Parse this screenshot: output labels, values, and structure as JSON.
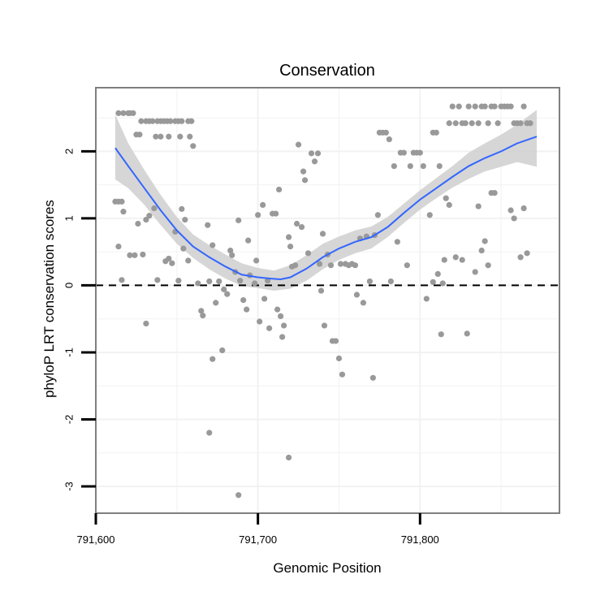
{
  "chart_data": {
    "type": "scatter",
    "title": "Conservation",
    "xlabel": "Genomic Position",
    "ylabel": "phyloP LRT conservation scores",
    "xlim": [
      791600,
      791886
    ],
    "ylim": [
      -3.4,
      2.95
    ],
    "x_ticks": [
      791600,
      791700,
      791800
    ],
    "x_tick_labels": [
      "791,600",
      "791,700",
      "791,800"
    ],
    "y_ticks": [
      -3,
      -2,
      -1,
      0,
      1,
      2
    ],
    "y_tick_labels": [
      "-3",
      "-2",
      "-1",
      "0",
      "1",
      "2"
    ],
    "grid": true,
    "reference_line": {
      "y": 0,
      "style": "dashed"
    },
    "colors": {
      "points": "#999999",
      "smooth_line": "#3366ff",
      "confidence_band": "#cccccc",
      "panel_border": "#7f7f7f",
      "grid": "#f2f2f2"
    },
    "points": [
      [
        791614,
        2.57
      ],
      [
        791617,
        2.57
      ],
      [
        791620,
        2.57
      ],
      [
        791621,
        2.57
      ],
      [
        791623,
        2.57
      ],
      [
        791625,
        2.25
      ],
      [
        791627,
        2.25
      ],
      [
        791628,
        2.45
      ],
      [
        791631,
        2.45
      ],
      [
        791633,
        2.45
      ],
      [
        791635,
        2.45
      ],
      [
        791638,
        2.45
      ],
      [
        791640,
        2.45
      ],
      [
        791642,
        2.45
      ],
      [
        791644,
        2.45
      ],
      [
        791646,
        2.45
      ],
      [
        791649,
        2.45
      ],
      [
        791651,
        2.45
      ],
      [
        791653,
        2.45
      ],
      [
        791657,
        2.45
      ],
      [
        791659,
        2.45
      ],
      [
        791637,
        2.22
      ],
      [
        791640,
        2.22
      ],
      [
        791645,
        2.22
      ],
      [
        791652,
        2.22
      ],
      [
        791658,
        2.22
      ],
      [
        791660,
        2.08
      ],
      [
        791612,
        1.25
      ],
      [
        791614,
        1.25
      ],
      [
        791616,
        1.25
      ],
      [
        791617,
        1.1
      ],
      [
        791614,
        0.58
      ],
      [
        791616,
        0.08
      ],
      [
        791621,
        0.45
      ],
      [
        791624,
        0.45
      ],
      [
        791626,
        0.92
      ],
      [
        791629,
        0.46
      ],
      [
        791631,
        0.98
      ],
      [
        791633,
        1.04
      ],
      [
        791636,
        1.15
      ],
      [
        791638,
        0.08
      ],
      [
        791643,
        0.36
      ],
      [
        791645,
        0.4
      ],
      [
        791647,
        0.33
      ],
      [
        791649,
        0.8
      ],
      [
        791651,
        0.07
      ],
      [
        791653,
        1.14
      ],
      [
        791654,
        0.55
      ],
      [
        791655,
        0.98
      ],
      [
        791657,
        0.37
      ],
      [
        791631,
        -0.57
      ],
      [
        791663,
        0.03
      ],
      [
        791665,
        -0.38
      ],
      [
        791666,
        -0.45
      ],
      [
        791669,
        0.9
      ],
      [
        791670,
        0.06
      ],
      [
        791672,
        0.6
      ],
      [
        791674,
        -0.26
      ],
      [
        791676,
        0.06
      ],
      [
        791678,
        -0.97
      ],
      [
        791679,
        -0.06
      ],
      [
        791681,
        -0.13
      ],
      [
        791683,
        0.52
      ],
      [
        791684,
        0.45
      ],
      [
        791686,
        0.2
      ],
      [
        791688,
        0.97
      ],
      [
        791689,
        0.07
      ],
      [
        791691,
        -0.22
      ],
      [
        791693,
        -0.36
      ],
      [
        791694,
        0.67
      ],
      [
        791695,
        0.15
      ],
      [
        791698,
        0.03
      ],
      [
        791699,
        0.37
      ],
      [
        791700,
        1.05
      ],
      [
        791701,
        -0.54
      ],
      [
        791703,
        1.2
      ],
      [
        791704,
        -0.2
      ],
      [
        791706,
        0.07
      ],
      [
        791707,
        -0.64
      ],
      [
        791709,
        1.07
      ],
      [
        791711,
        1.07
      ],
      [
        791712,
        -0.36
      ],
      [
        791713,
        1.43
      ],
      [
        791714,
        -0.46
      ],
      [
        791715,
        -0.77
      ],
      [
        791716,
        -0.6
      ],
      [
        791719,
        0.72
      ],
      [
        791720,
        0.58
      ],
      [
        791721,
        0.28
      ],
      [
        791723,
        0.3
      ],
      [
        791724,
        0.92
      ],
      [
        791725,
        2.1
      ],
      [
        791727,
        0.87
      ],
      [
        791728,
        1.7
      ],
      [
        791729,
        1.57
      ],
      [
        791731,
        0.48
      ],
      [
        791733,
        1.97
      ],
      [
        791735,
        1.85
      ],
      [
        791737,
        1.97
      ],
      [
        791738,
        0.32
      ],
      [
        791739,
        -0.08
      ],
      [
        791740,
        0.77
      ],
      [
        791741,
        -0.6
      ],
      [
        791743,
        0.46
      ],
      [
        791745,
        0.3
      ],
      [
        791746,
        -0.83
      ],
      [
        791748,
        -0.83
      ],
      [
        791750,
        -1.09
      ],
      [
        791751,
        0.32
      ],
      [
        791752,
        -1.33
      ],
      [
        791754,
        0.32
      ],
      [
        791756,
        0.3
      ],
      [
        791758,
        0.32
      ],
      [
        791760,
        0.3
      ],
      [
        791761,
        -0.14
      ],
      [
        791763,
        0.7
      ],
      [
        791765,
        -0.26
      ],
      [
        791767,
        0.73
      ],
      [
        791769,
        0.06
      ],
      [
        791771,
        -1.38
      ],
      [
        791772,
        0.75
      ],
      [
        791774,
        1.05
      ],
      [
        791775,
        2.28
      ],
      [
        791777,
        2.28
      ],
      [
        791779,
        2.28
      ],
      [
        791781,
        2.18
      ],
      [
        791782,
        0.06
      ],
      [
        791784,
        1.78
      ],
      [
        791786,
        0.65
      ],
      [
        791788,
        1.98
      ],
      [
        791790,
        1.98
      ],
      [
        791792,
        0.3
      ],
      [
        791794,
        1.78
      ],
      [
        791796,
        1.98
      ],
      [
        791798,
        1.98
      ],
      [
        791800,
        1.98
      ],
      [
        791802,
        1.78
      ],
      [
        791804,
        -0.2
      ],
      [
        791806,
        1.05
      ],
      [
        791808,
        2.28
      ],
      [
        791810,
        2.28
      ],
      [
        791812,
        1.78
      ],
      [
        791813,
        -0.73
      ],
      [
        791815,
        0.38
      ],
      [
        791816,
        1.3
      ],
      [
        791818,
        2.42
      ],
      [
        791820,
        2.67
      ],
      [
        791822,
        2.42
      ],
      [
        791824,
        2.67
      ],
      [
        791826,
        2.42
      ],
      [
        791828,
        2.42
      ],
      [
        791830,
        2.67
      ],
      [
        791832,
        2.42
      ],
      [
        791834,
        2.67
      ],
      [
        791836,
        2.42
      ],
      [
        791838,
        2.67
      ],
      [
        791840,
        2.67
      ],
      [
        791842,
        2.42
      ],
      [
        791844,
        2.67
      ],
      [
        791846,
        2.67
      ],
      [
        791848,
        2.42
      ],
      [
        791850,
        2.67
      ],
      [
        791852,
        2.67
      ],
      [
        791854,
        2.67
      ],
      [
        791856,
        2.67
      ],
      [
        791858,
        2.42
      ],
      [
        791860,
        2.42
      ],
      [
        791862,
        2.42
      ],
      [
        791864,
        2.67
      ],
      [
        791866,
        2.42
      ],
      [
        791868,
        2.42
      ],
      [
        791818,
        1.2
      ],
      [
        791822,
        0.42
      ],
      [
        791826,
        0.38
      ],
      [
        791829,
        -0.72
      ],
      [
        791834,
        0.2
      ],
      [
        791836,
        1.18
      ],
      [
        791838,
        0.52
      ],
      [
        791840,
        0.66
      ],
      [
        791842,
        0.3
      ],
      [
        791844,
        1.38
      ],
      [
        791846,
        1.38
      ],
      [
        791856,
        1.12
      ],
      [
        791858,
        1.0
      ],
      [
        791862,
        0.42
      ],
      [
        791864,
        1.15
      ],
      [
        791866,
        0.48
      ],
      [
        791670,
        -2.2
      ],
      [
        791672,
        -1.1
      ],
      [
        791688,
        -3.13
      ],
      [
        791719,
        -2.57
      ],
      [
        791808,
        0.05
      ],
      [
        791811,
        0.17
      ],
      [
        791814,
        0.03
      ]
    ],
    "smooth_line": [
      [
        791612,
        2.05
      ],
      [
        791620,
        1.78
      ],
      [
        791630,
        1.45
      ],
      [
        791640,
        1.12
      ],
      [
        791650,
        0.82
      ],
      [
        791660,
        0.58
      ],
      [
        791670,
        0.42
      ],
      [
        791680,
        0.28
      ],
      [
        791690,
        0.16
      ],
      [
        791700,
        0.12
      ],
      [
        791708,
        0.1
      ],
      [
        791714,
        0.09
      ],
      [
        791720,
        0.12
      ],
      [
        791730,
        0.25
      ],
      [
        791740,
        0.42
      ],
      [
        791750,
        0.55
      ],
      [
        791760,
        0.65
      ],
      [
        791770,
        0.72
      ],
      [
        791780,
        0.87
      ],
      [
        791790,
        1.08
      ],
      [
        791800,
        1.28
      ],
      [
        791810,
        1.45
      ],
      [
        791820,
        1.62
      ],
      [
        791830,
        1.78
      ],
      [
        791840,
        1.9
      ],
      [
        791850,
        2.0
      ],
      [
        791860,
        2.12
      ],
      [
        791872,
        2.22
      ]
    ],
    "band_upper": [
      [
        791612,
        2.55
      ],
      [
        791620,
        2.12
      ],
      [
        791630,
        1.72
      ],
      [
        791640,
        1.35
      ],
      [
        791650,
        1.02
      ],
      [
        791660,
        0.76
      ],
      [
        791670,
        0.6
      ],
      [
        791680,
        0.46
      ],
      [
        791690,
        0.33
      ],
      [
        791700,
        0.26
      ],
      [
        791710,
        0.22
      ],
      [
        791720,
        0.3
      ],
      [
        791730,
        0.45
      ],
      [
        791740,
        0.62
      ],
      [
        791750,
        0.73
      ],
      [
        791760,
        0.82
      ],
      [
        791770,
        0.88
      ],
      [
        791780,
        1.02
      ],
      [
        791790,
        1.22
      ],
      [
        791800,
        1.42
      ],
      [
        791810,
        1.6
      ],
      [
        791820,
        1.78
      ],
      [
        791830,
        1.98
      ],
      [
        791840,
        2.12
      ],
      [
        791850,
        2.25
      ],
      [
        791860,
        2.4
      ],
      [
        791872,
        2.62
      ]
    ],
    "band_lower": [
      [
        791612,
        1.58
      ],
      [
        791620,
        1.45
      ],
      [
        791630,
        1.2
      ],
      [
        791640,
        0.9
      ],
      [
        791650,
        0.62
      ],
      [
        791660,
        0.41
      ],
      [
        791670,
        0.24
      ],
      [
        791680,
        0.1
      ],
      [
        791690,
        -0.01
      ],
      [
        791700,
        -0.04
      ],
      [
        791710,
        -0.08
      ],
      [
        791720,
        -0.05
      ],
      [
        791730,
        0.07
      ],
      [
        791740,
        0.24
      ],
      [
        791750,
        0.38
      ],
      [
        791760,
        0.48
      ],
      [
        791770,
        0.55
      ],
      [
        791780,
        0.72
      ],
      [
        791790,
        0.93
      ],
      [
        791800,
        1.13
      ],
      [
        791810,
        1.3
      ],
      [
        791820,
        1.46
      ],
      [
        791830,
        1.59
      ],
      [
        791840,
        1.7
      ],
      [
        791850,
        1.77
      ],
      [
        791860,
        1.84
      ],
      [
        791872,
        1.77
      ]
    ]
  }
}
